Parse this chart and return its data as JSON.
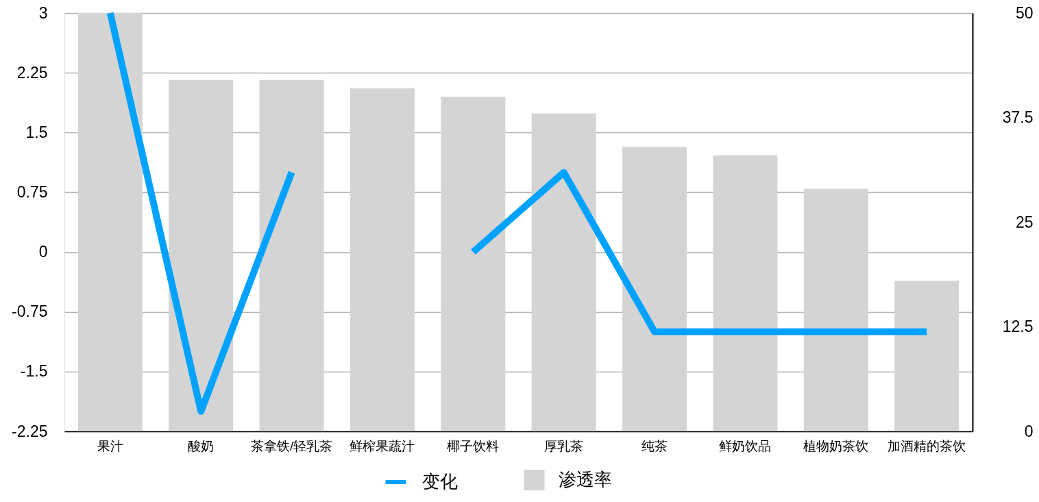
{
  "chart_data": {
    "type": "bar",
    "categories": [
      "果汁",
      "酸奶",
      "茶拿铁/轻乳茶",
      "鲜榨果蔬汁",
      "椰子饮料",
      "厚乳茶",
      "纯茶",
      "鲜奶饮品",
      "植物奶茶饮",
      "加酒精的茶饮"
    ],
    "series": [
      {
        "name": "变化",
        "type": "line",
        "color": "#00a2ff",
        "values": [
          3,
          -2,
          1,
          null,
          0,
          1,
          -1,
          -1,
          -1,
          -1
        ]
      },
      {
        "name": "渗透率",
        "axis": "y2",
        "color": "#d4d4d4",
        "values": [
          50,
          42,
          42,
          41,
          40,
          38,
          34,
          33,
          29,
          18
        ]
      }
    ],
    "ylim": [
      -2.25,
      3
    ],
    "yticks": [
      -2.25,
      -1.5,
      -0.75,
      0,
      0.75,
      1.5,
      2.25,
      3
    ],
    "y2lim": [
      0,
      50
    ],
    "y2ticks": [
      0,
      12.5,
      25,
      37.5,
      50
    ],
    "grid": "y",
    "legend": "bottom",
    "line_style": "solid"
  }
}
